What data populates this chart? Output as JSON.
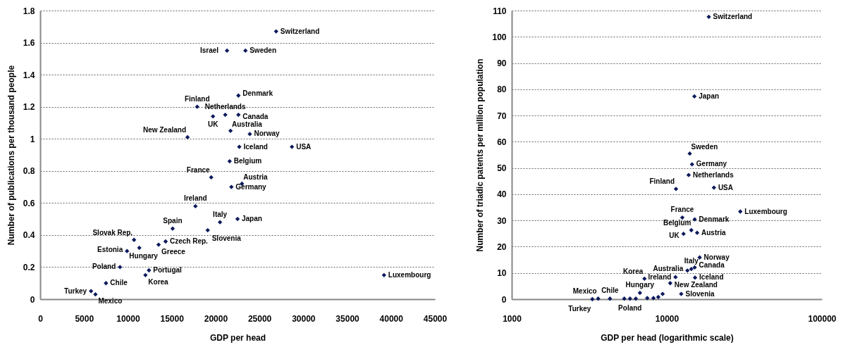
{
  "chart_data": [
    {
      "type": "scatter",
      "xlabel": "GDP per head",
      "ylabel": "Number of publications per thousand people",
      "xlim": [
        0,
        45000
      ],
      "xticks": [
        0,
        5000,
        10000,
        15000,
        20000,
        25000,
        30000,
        35000,
        40000,
        45000
      ],
      "ylim": [
        0,
        1.8
      ],
      "yticks": [
        0,
        0.2,
        0.4,
        0.6,
        0.8,
        1,
        1.2,
        1.4,
        1.6,
        1.8
      ],
      "grid": "y",
      "marker": "diamond",
      "series": [
        {
          "color": "#0d1a5c",
          "x": [
            26900,
            21300,
            23400,
            22600,
            17900,
            19700,
            21100,
            22600,
            21700,
            23900,
            16800,
            22700,
            28700,
            21600,
            19500,
            23000,
            21800,
            17700,
            20500,
            22500,
            15100,
            19100,
            10700,
            14300,
            13500,
            11300,
            9900,
            9100,
            12400,
            12000,
            7500,
            5800,
            6300,
            39200
          ],
          "values": [
            1.67,
            1.55,
            1.55,
            1.27,
            1.2,
            1.14,
            1.15,
            1.15,
            1.05,
            1.03,
            1.01,
            0.95,
            0.95,
            0.86,
            0.76,
            0.72,
            0.7,
            0.58,
            0.48,
            0.5,
            0.44,
            0.43,
            0.37,
            0.36,
            0.34,
            0.32,
            0.3,
            0.2,
            0.18,
            0.15,
            0.1,
            0.05,
            0.03,
            0.15
          ]
        }
      ],
      "annotations": [
        {
          "text": "Switzerland",
          "x": 26900,
          "y": 1.67
        },
        {
          "text": "Israel",
          "x": 21300,
          "y": 1.55
        },
        {
          "text": "Sweden",
          "x": 23400,
          "y": 1.55
        },
        {
          "text": "Denmark",
          "x": 22600,
          "y": 1.27
        },
        {
          "text": "Finland",
          "x": 17900,
          "y": 1.2
        },
        {
          "text": "UK",
          "x": 19700,
          "y": 1.14
        },
        {
          "text": "Netherlands",
          "x": 21100,
          "y": 1.15
        },
        {
          "text": "Canada",
          "x": 22600,
          "y": 1.15
        },
        {
          "text": "Australia",
          "x": 21700,
          "y": 1.05
        },
        {
          "text": "Norway",
          "x": 23900,
          "y": 1.03
        },
        {
          "text": "New Zealand",
          "x": 16800,
          "y": 1.01
        },
        {
          "text": "Iceland",
          "x": 22700,
          "y": 0.95
        },
        {
          "text": "USA",
          "x": 28700,
          "y": 0.95
        },
        {
          "text": "Belgium",
          "x": 21600,
          "y": 0.86
        },
        {
          "text": "France",
          "x": 19500,
          "y": 0.76
        },
        {
          "text": "Austria",
          "x": 23000,
          "y": 0.72
        },
        {
          "text": "Germany",
          "x": 21800,
          "y": 0.7
        },
        {
          "text": "Ireland",
          "x": 17700,
          "y": 0.58
        },
        {
          "text": "Italy",
          "x": 20500,
          "y": 0.48
        },
        {
          "text": "Japan",
          "x": 22500,
          "y": 0.5
        },
        {
          "text": "Spain",
          "x": 15100,
          "y": 0.44
        },
        {
          "text": "Slovenia",
          "x": 19100,
          "y": 0.43
        },
        {
          "text": "Slovak Rep.",
          "x": 10700,
          "y": 0.37
        },
        {
          "text": "Czech Rep.",
          "x": 14300,
          "y": 0.36
        },
        {
          "text": "Greece",
          "x": 13500,
          "y": 0.34
        },
        {
          "text": "Hungary",
          "x": 11300,
          "y": 0.32
        },
        {
          "text": "Estonia",
          "x": 9900,
          "y": 0.3
        },
        {
          "text": "Poland",
          "x": 9100,
          "y": 0.2
        },
        {
          "text": "Portugal",
          "x": 12400,
          "y": 0.18
        },
        {
          "text": "Korea",
          "x": 12000,
          "y": 0.15
        },
        {
          "text": "Chile",
          "x": 7500,
          "y": 0.1
        },
        {
          "text": "Turkey",
          "x": 5800,
          "y": 0.05
        },
        {
          "text": "Mexico",
          "x": 6300,
          "y": 0.03
        },
        {
          "text": "Luxembourg",
          "x": 39200,
          "y": 0.15
        }
      ]
    },
    {
      "type": "scatter",
      "xlabel": "GDP per head (logarithmic scale)",
      "ylabel": "Number of triadic patents per million population",
      "log": "x",
      "xlim": [
        1000,
        100000
      ],
      "xticks": [
        1000,
        10000,
        100000
      ],
      "ylim": [
        0,
        110
      ],
      "yticks": [
        0,
        10,
        20,
        30,
        40,
        50,
        60,
        70,
        80,
        90,
        100,
        110
      ],
      "grid": "y",
      "marker": "diamond",
      "series": [
        {
          "color": "#0d1a5c",
          "x": [
            18660,
            15070,
            14060,
            14550,
            13830,
            11460,
            20140,
            29790,
            12590,
            15130,
            14390,
            12820,
            15690,
            16290,
            15130,
            13580,
            14390,
            15210,
            10520,
            11380,
            7180,
            12390,
            6710,
            9400,
            8810,
            8200,
            7480,
            6310,
            5790,
            5320,
            4300,
            3610,
            3310
          ],
          "values": [
            107.6,
            77.3,
            55.5,
            51.4,
            47.3,
            42,
            42.5,
            33.4,
            31.1,
            30.4,
            26.3,
            24.9,
            25.3,
            15.9,
            12.1,
            10.9,
            11.5,
            8.2,
            6.1,
            8.4,
            7.8,
            2,
            2.4,
            2,
            0.8,
            0.4,
            0.4,
            0.2,
            0.2,
            0.2,
            0.2,
            0.2,
            0
          ]
        }
      ],
      "annotations": [
        {
          "text": "Switzerland",
          "x": 18660,
          "y": 107.6
        },
        {
          "text": "Japan",
          "x": 15070,
          "y": 77.3
        },
        {
          "text": "Sweden",
          "x": 14060,
          "y": 55.5
        },
        {
          "text": "Germany",
          "x": 14550,
          "y": 51.4
        },
        {
          "text": "Netherlands",
          "x": 13830,
          "y": 47.3
        },
        {
          "text": "Finland",
          "x": 11460,
          "y": 42
        },
        {
          "text": "USA",
          "x": 20140,
          "y": 42.5
        },
        {
          "text": "Luxembourg",
          "x": 29790,
          "y": 33.4
        },
        {
          "text": "France",
          "x": 12590,
          "y": 31.1
        },
        {
          "text": "Denmark",
          "x": 15130,
          "y": 30.4
        },
        {
          "text": "Belgium",
          "x": 14390,
          "y": 26.3
        },
        {
          "text": "UK",
          "x": 12820,
          "y": 24.9
        },
        {
          "text": "Austria",
          "x": 15690,
          "y": 25.3
        },
        {
          "text": "Norway",
          "x": 16290,
          "y": 15.9
        },
        {
          "text": "Canada",
          "x": 15130,
          "y": 12.1
        },
        {
          "text": "Australia",
          "x": 13580,
          "y": 10.9
        },
        {
          "text": "Italy",
          "x": 14390,
          "y": 11.5
        },
        {
          "text": "Iceland",
          "x": 15210,
          "y": 8.2
        },
        {
          "text": "New Zealand",
          "x": 10520,
          "y": 6.1
        },
        {
          "text": "Ireland",
          "x": 11380,
          "y": 8.4
        },
        {
          "text": "Korea",
          "x": 7180,
          "y": 7.8
        },
        {
          "text": "Slovenia",
          "x": 12390,
          "y": 2
        },
        {
          "text": "Hungary",
          "x": 6710,
          "y": 2.4
        },
        {
          "text": "Poland",
          "x": 5790,
          "y": 0.2
        },
        {
          "text": "Chile",
          "x": 4300,
          "y": 0.2
        },
        {
          "text": "Mexico",
          "x": 3610,
          "y": 0.2
        },
        {
          "text": "Turkey",
          "x": 3310,
          "y": 0
        }
      ]
    }
  ]
}
